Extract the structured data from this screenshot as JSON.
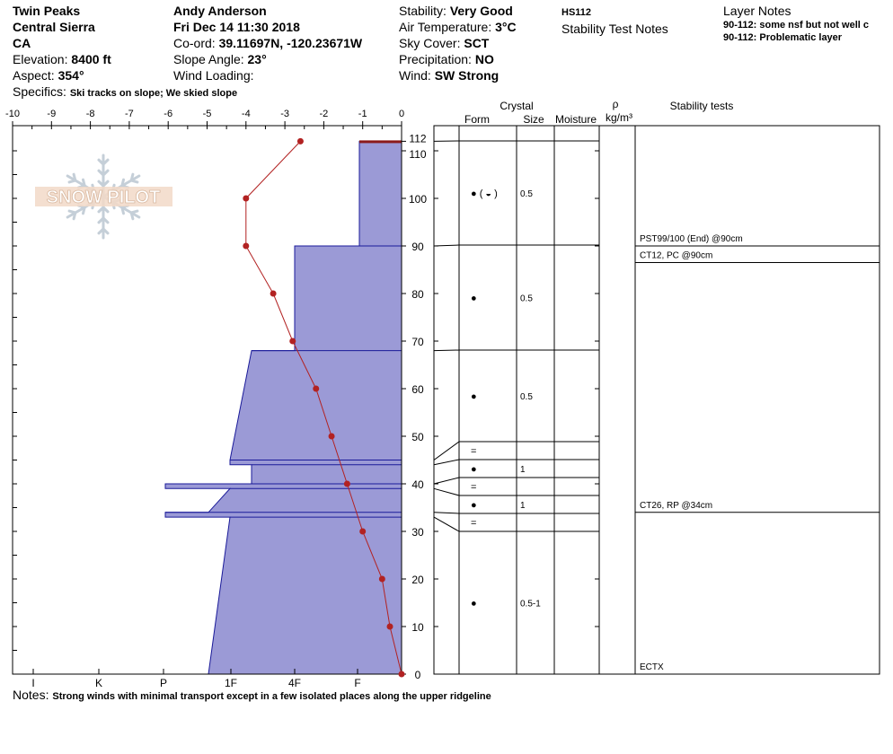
{
  "site": {
    "name": "Twin Peaks",
    "range": "Central Sierra",
    "state": "CA",
    "elevation_label": "Elevation:",
    "elevation": "8400 ft",
    "aspect_label": "Aspect:",
    "aspect": "354°",
    "specifics_label": "Specifics:",
    "specifics": "Ski tracks on slope; We skied slope"
  },
  "observer": {
    "name": "Andy Anderson",
    "datetime": "Fri Dec 14 11:30 2018",
    "coord_label": "Co-ord:",
    "coord": "39.11697N, -120.23671W",
    "slope_label": "Slope Angle:",
    "slope": "23°",
    "wind_loading_label": "Wind Loading:"
  },
  "conditions": {
    "stability_label": "Stability:",
    "stability": "Very Good",
    "air_temp_label": "Air Temperature:",
    "air_temp": "3°C",
    "sky_label": "Sky Cover:",
    "sky": "SCT",
    "precip_label": "Precipitation:",
    "precip": "NO",
    "wind_label": "Wind:",
    "wind": "SW Strong"
  },
  "stability_notes": {
    "hs": "HS112",
    "title": "Stability Test Notes"
  },
  "layer_notes": {
    "title": "Layer Notes",
    "items": [
      "90-112: some nsf but not well c",
      "90-112: Problematic layer"
    ]
  },
  "notes": {
    "label": "Notes:",
    "text": "Strong winds with minimal transport except in a few isolated places along the upper ridgeline"
  },
  "logo_text": "SNOW PILOT",
  "columns": {
    "crystal": "Crystal",
    "form": "Form",
    "size": "Size",
    "moisture": "Moisture",
    "rho": "ρ",
    "density": "kg/m³",
    "tests": "Stability tests"
  },
  "colors": {
    "hardness_fill": "#9b9ad6",
    "hardness_edge": "#1a1a99",
    "temp": "#b22222",
    "top_band": "#8b1a1a"
  },
  "chart_data": {
    "type": "snow_profile",
    "depth_range": [
      0,
      112
    ],
    "depth_ticks": [
      0,
      10,
      20,
      30,
      40,
      50,
      60,
      70,
      80,
      90,
      100,
      110,
      112
    ],
    "temp_range": [
      -10,
      0
    ],
    "temp_ticks": [
      -10,
      -9,
      -8,
      -7,
      -6,
      -5,
      -4,
      -3,
      -2,
      -1,
      0
    ],
    "hardness_ticks": [
      "I",
      "K",
      "P",
      "1F",
      "4F",
      "F"
    ],
    "temperature_profile": [
      {
        "depth": 112,
        "temp": -2.6
      },
      {
        "depth": 100,
        "temp": -4.0
      },
      {
        "depth": 90,
        "temp": -4.0
      },
      {
        "depth": 80,
        "temp": -3.3
      },
      {
        "depth": 70,
        "temp": -2.8
      },
      {
        "depth": 60,
        "temp": -2.2
      },
      {
        "depth": 50,
        "temp": -1.8
      },
      {
        "depth": 40,
        "temp": -1.4
      },
      {
        "depth": 30,
        "temp": -1.0
      },
      {
        "depth": 20,
        "temp": -0.5
      },
      {
        "depth": 10,
        "temp": -0.3
      },
      {
        "depth": 0,
        "temp": 0.0
      }
    ],
    "layers": [
      {
        "top": 112,
        "bottom": 90,
        "hardness": "F",
        "form": "● ( ◒ )",
        "size": "0.5"
      },
      {
        "top": 90,
        "bottom": 68,
        "hardness": "4F",
        "form": "●",
        "size": "0.5"
      },
      {
        "top": 68,
        "bottom": 45,
        "hardness": "4F-1F",
        "form": "●",
        "size": "0.5"
      },
      {
        "top": 45,
        "bottom": 44,
        "hardness": "1F",
        "form": "=",
        "size": ""
      },
      {
        "top": 44,
        "bottom": 40,
        "hardness": "4F-1F",
        "form": "●",
        "size": "1"
      },
      {
        "top": 40,
        "bottom": 39,
        "hardness": "P",
        "form": "=",
        "size": ""
      },
      {
        "top": 39,
        "bottom": 34,
        "hardness": "1F",
        "form": "●",
        "size": "1"
      },
      {
        "top": 34,
        "bottom": 33,
        "hardness": "P",
        "form": "=",
        "size": ""
      },
      {
        "top": 33,
        "bottom": 0,
        "hardness": "1F",
        "form": "●",
        "size": "0.5-1"
      }
    ],
    "stability_tests": [
      {
        "depth": 90,
        "label": "PST99/100 (End) @90cm"
      },
      {
        "depth": 86.5,
        "label": "CT12, PC @90cm"
      },
      {
        "depth": 34,
        "label": "CT26, RP @34cm"
      },
      {
        "depth": 0,
        "label": "ECTX"
      }
    ]
  }
}
